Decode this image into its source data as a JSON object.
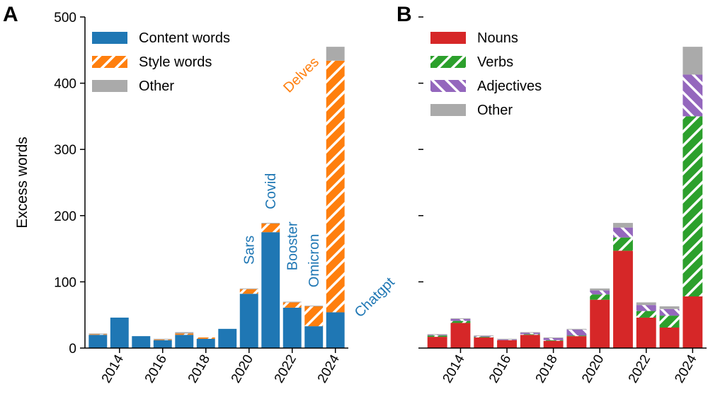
{
  "chart_data": [
    {
      "type": "stacked_bar",
      "panel_label": "A",
      "ylabel": "Excess words",
      "x": [
        2013,
        2014,
        2015,
        2016,
        2017,
        2018,
        2019,
        2020,
        2021,
        2022,
        2023,
        2024
      ],
      "xlim": [
        2012.4,
        2024.6
      ],
      "xticks": [
        2014,
        2016,
        2018,
        2020,
        2022,
        2024
      ],
      "ylim": [
        0,
        500
      ],
      "yticks": [
        0,
        100,
        200,
        300,
        400,
        500
      ],
      "ytick_labels": true,
      "legend": "upper left",
      "series": [
        {
          "name": "Content words",
          "color": "#1f77b4",
          "hatch": null,
          "values": [
            20,
            46,
            18,
            12,
            20,
            14,
            29,
            82,
            175,
            61,
            33,
            54
          ]
        },
        {
          "name": "Style words",
          "color": "#ff7f0e",
          "hatch": "/",
          "values": [
            1,
            0,
            0,
            1,
            2,
            2,
            0,
            7,
            13,
            8,
            30,
            380
          ]
        },
        {
          "name": "Other",
          "color": "#aaaaaa",
          "hatch": null,
          "values": [
            1,
            0,
            0,
            1,
            2,
            0,
            0,
            1,
            1,
            1,
            1,
            21
          ]
        }
      ],
      "annotations": [
        {
          "text": "Sars",
          "color": "#1f77b4"
        },
        {
          "text": "Covid",
          "color": "#1f77b4"
        },
        {
          "text": "Booster",
          "color": "#1f77b4"
        },
        {
          "text": "Omicron",
          "color": "#1f77b4"
        },
        {
          "text": "Chatgpt",
          "color": "#1f77b4"
        },
        {
          "text": "Delves",
          "color": "#ff7f0e"
        }
      ]
    },
    {
      "type": "stacked_bar",
      "panel_label": "B",
      "x": [
        2013,
        2014,
        2015,
        2016,
        2017,
        2018,
        2019,
        2020,
        2021,
        2022,
        2023,
        2024
      ],
      "xlim": [
        2012.4,
        2024.6
      ],
      "xticks": [
        2014,
        2016,
        2018,
        2020,
        2022,
        2024
      ],
      "ylim": [
        0,
        500
      ],
      "yticks": [
        0,
        100,
        200,
        300,
        400,
        500
      ],
      "ytick_labels": false,
      "legend": "upper left",
      "series": [
        {
          "name": "Nouns",
          "color": "#d62728",
          "hatch": null,
          "values": [
            17,
            38,
            16,
            12,
            20,
            11,
            18,
            73,
            147,
            46,
            31,
            78
          ]
        },
        {
          "name": "Verbs",
          "color": "#2ca02c",
          "hatch": "/",
          "values": [
            2,
            3,
            1,
            0,
            1,
            1,
            1,
            8,
            20,
            10,
            18,
            272
          ]
        },
        {
          "name": "Adjectives",
          "color": "#9467bd",
          "hatch": "\\",
          "values": [
            1,
            3,
            1,
            1,
            2,
            3,
            9,
            6,
            15,
            9,
            10,
            63
          ]
        },
        {
          "name": "Other",
          "color": "#aaaaaa",
          "hatch": null,
          "values": [
            1,
            1,
            1,
            1,
            1,
            1,
            1,
            3,
            7,
            4,
            4,
            42
          ]
        }
      ]
    }
  ]
}
